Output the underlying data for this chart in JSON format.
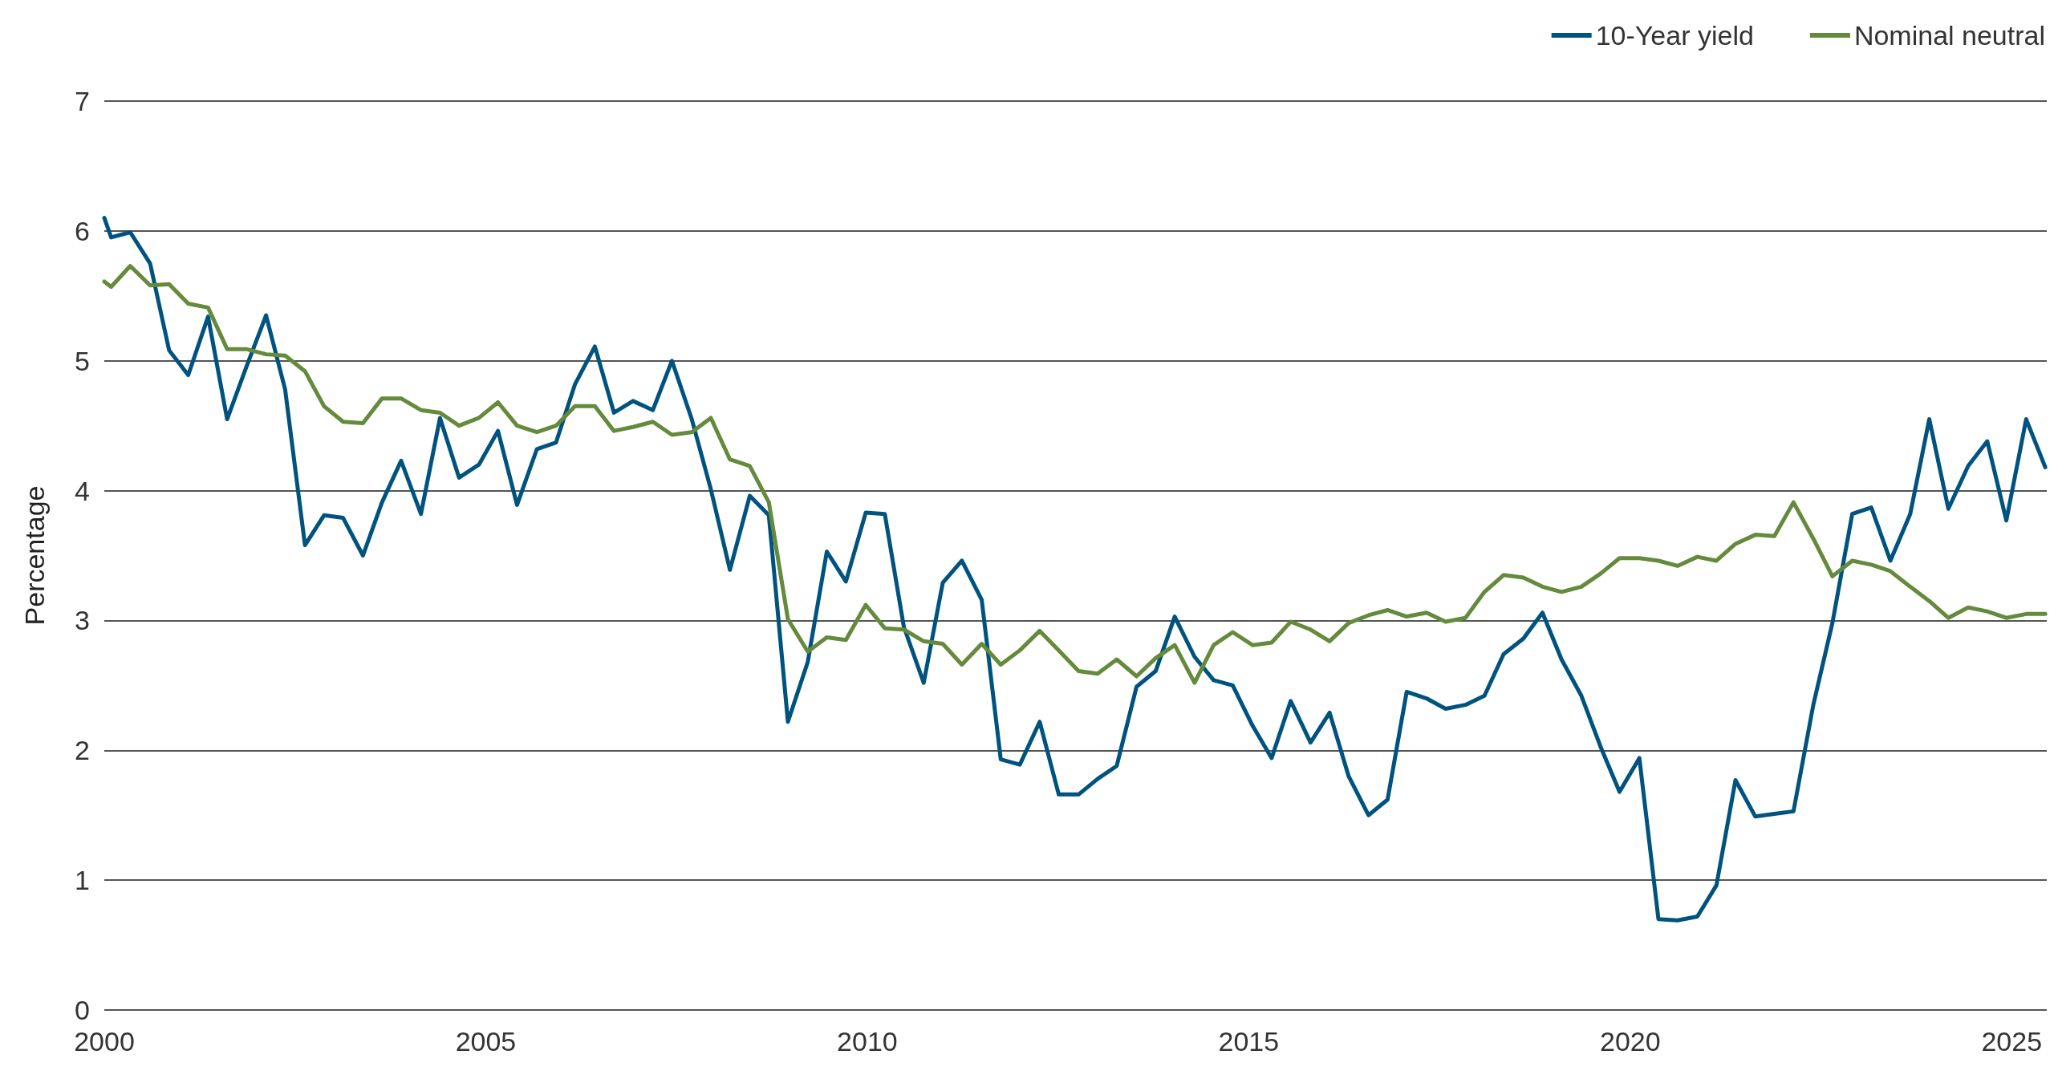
{
  "chart_data": {
    "type": "line",
    "ylabel": "Percentage",
    "x": [
      2000.0,
      2000.09,
      2000.34,
      2000.6,
      2000.85,
      2001.1,
      2001.36,
      2001.61,
      2001.86,
      2002.12,
      2002.37,
      2002.63,
      2002.88,
      2003.13,
      2003.39,
      2003.64,
      2003.89,
      2004.15,
      2004.4,
      2004.65,
      2004.91,
      2005.16,
      2005.41,
      2005.67,
      2005.92,
      2006.17,
      2006.43,
      2006.68,
      2006.93,
      2007.19,
      2007.44,
      2007.7,
      2007.95,
      2008.2,
      2008.46,
      2008.71,
      2008.96,
      2009.22,
      2009.47,
      2009.72,
      2009.98,
      2010.23,
      2010.48,
      2010.74,
      2010.99,
      2011.24,
      2011.5,
      2011.75,
      2012.0,
      2012.26,
      2012.51,
      2012.77,
      2013.02,
      2013.27,
      2013.53,
      2013.78,
      2014.03,
      2014.29,
      2014.54,
      2014.79,
      2015.05,
      2015.3,
      2015.55,
      2015.81,
      2016.06,
      2016.31,
      2016.57,
      2016.82,
      2017.07,
      2017.33,
      2017.58,
      2017.84,
      2018.09,
      2018.34,
      2018.6,
      2018.85,
      2019.1,
      2019.36,
      2019.61,
      2019.86,
      2020.12,
      2020.37,
      2020.62,
      2020.88,
      2021.13,
      2021.38,
      2021.64,
      2021.89,
      2022.14,
      2022.4,
      2022.65,
      2022.91,
      2023.16,
      2023.41,
      2023.67,
      2023.92,
      2024.17,
      2024.43,
      2024.68,
      2024.93,
      2025.19,
      2025.44
    ],
    "series": [
      {
        "name": "10-Year yield",
        "color": "#00537f",
        "values": [
          6.1,
          5.95,
          5.99,
          5.75,
          5.08,
          4.89,
          5.34,
          4.55,
          4.95,
          5.35,
          4.78,
          3.58,
          3.81,
          3.79,
          3.5,
          3.91,
          4.23,
          3.82,
          4.56,
          4.1,
          4.2,
          4.46,
          3.89,
          4.32,
          4.37,
          4.82,
          5.11,
          4.6,
          4.69,
          4.62,
          5.0,
          4.55,
          4.01,
          3.39,
          3.96,
          3.81,
          2.22,
          2.68,
          3.53,
          3.3,
          3.83,
          3.82,
          2.95,
          2.52,
          3.29,
          3.46,
          3.16,
          1.93,
          1.89,
          2.22,
          1.66,
          1.66,
          1.78,
          1.88,
          2.49,
          2.61,
          3.03,
          2.72,
          2.54,
          2.5,
          2.19,
          1.94,
          2.38,
          2.06,
          2.29,
          1.8,
          1.5,
          1.62,
          2.45,
          2.4,
          2.32,
          2.35,
          2.42,
          2.74,
          2.86,
          3.06,
          2.7,
          2.42,
          2.03,
          1.68,
          1.94,
          0.7,
          0.69,
          0.72,
          0.96,
          1.77,
          1.49,
          1.51,
          1.53,
          2.35,
          2.98,
          3.82,
          3.87,
          3.46,
          3.82,
          4.55,
          3.86,
          4.19,
          4.38,
          3.77,
          4.55,
          4.18
        ]
      },
      {
        "name": "Nominal neutral",
        "color": "#648a3c",
        "values": [
          5.61,
          5.57,
          5.73,
          5.58,
          5.59,
          5.44,
          5.41,
          5.09,
          5.09,
          5.05,
          5.04,
          4.92,
          4.65,
          4.53,
          4.52,
          4.71,
          4.71,
          4.62,
          4.6,
          4.5,
          4.56,
          4.68,
          4.5,
          4.45,
          4.5,
          4.65,
          4.65,
          4.46,
          4.49,
          4.53,
          4.43,
          4.45,
          4.56,
          4.24,
          4.19,
          3.91,
          3.01,
          2.76,
          2.87,
          2.85,
          3.12,
          2.94,
          2.93,
          2.84,
          2.82,
          2.66,
          2.82,
          2.66,
          2.77,
          2.92,
          2.77,
          2.61,
          2.59,
          2.7,
          2.57,
          2.71,
          2.81,
          2.52,
          2.81,
          2.91,
          2.81,
          2.83,
          2.99,
          2.93,
          2.84,
          2.98,
          3.04,
          3.08,
          3.03,
          3.06,
          2.99,
          3.02,
          3.22,
          3.35,
          3.33,
          3.26,
          3.22,
          3.26,
          3.36,
          3.48,
          3.48,
          3.46,
          3.42,
          3.49,
          3.46,
          3.59,
          3.66,
          3.65,
          3.91,
          3.63,
          3.34,
          3.46,
          3.43,
          3.38,
          3.26,
          3.15,
          3.02,
          3.1,
          3.07,
          3.02,
          3.05,
          3.05
        ]
      }
    ],
    "xlim": [
      2000,
      2025.46
    ],
    "xticks": [
      2000,
      2005,
      2010,
      2015,
      2020,
      2025
    ],
    "ylim": [
      0,
      7
    ],
    "yticks": [
      0,
      1,
      2,
      3,
      4,
      5,
      6,
      7
    ],
    "grid": "y",
    "legend": "top right",
    "marker": "none",
    "line_style": "solid"
  }
}
